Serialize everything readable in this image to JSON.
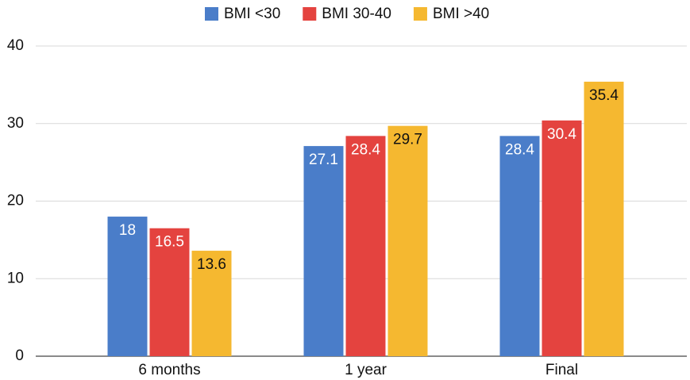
{
  "chart_data": {
    "type": "bar",
    "categories": [
      "6 months",
      "1 year",
      "Final"
    ],
    "series": [
      {
        "name": "BMI <30",
        "color": "#4a7dc9",
        "label_color": "#ffffff",
        "values": [
          18,
          27.1,
          28.4
        ]
      },
      {
        "name": "BMI 30-40",
        "color": "#e4433f",
        "label_color": "#ffffff",
        "values": [
          16.5,
          28.4,
          30.4
        ]
      },
      {
        "name": "BMI >40",
        "color": "#f5b830",
        "label_color": "#111111",
        "values": [
          13.6,
          29.7,
          35.4
        ]
      }
    ],
    "ylim": [
      0,
      40
    ],
    "yticks": [
      0,
      10,
      20,
      30,
      40
    ],
    "grid": true,
    "legend": "top"
  }
}
